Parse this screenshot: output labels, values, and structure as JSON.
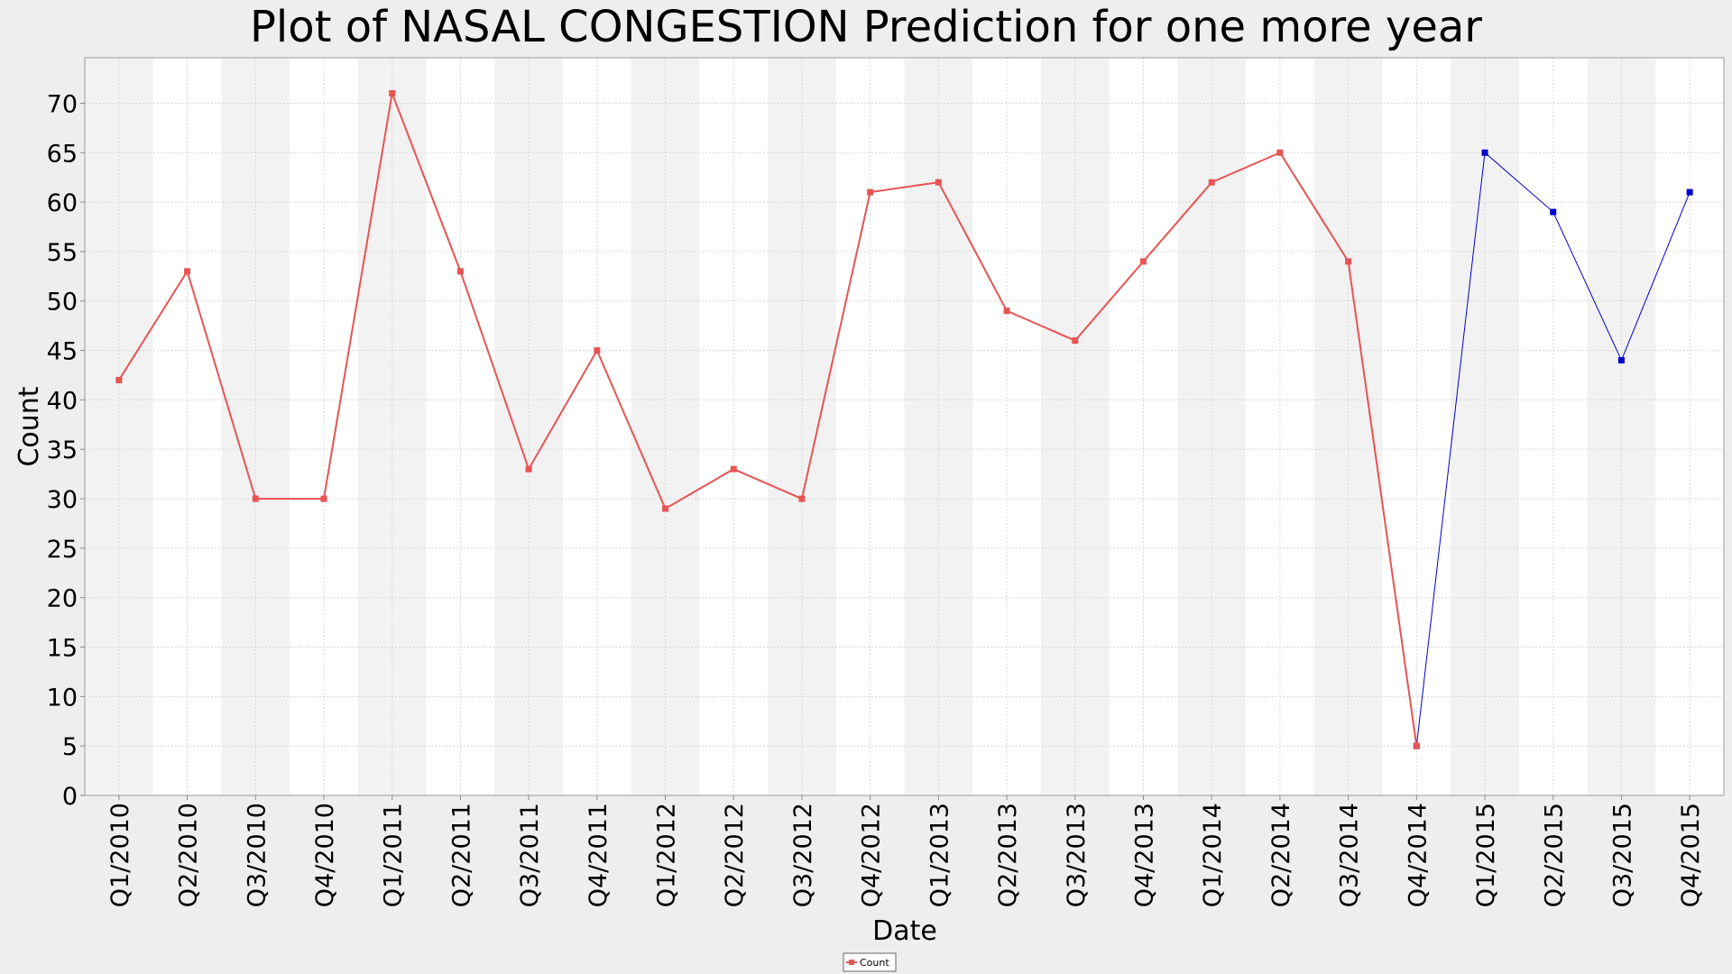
{
  "chart_data": {
    "type": "line",
    "title": "Plot of NASAL CONGESTION Prediction for one more year",
    "x_label": "Date",
    "y_label": "Count",
    "categories": [
      "Q1/2010",
      "Q2/2010",
      "Q3/2010",
      "Q4/2010",
      "Q1/2011",
      "Q2/2011",
      "Q3/2011",
      "Q4/2011",
      "Q1/2012",
      "Q2/2012",
      "Q3/2012",
      "Q4/2012",
      "Q1/2013",
      "Q2/2013",
      "Q3/2013",
      "Q4/2013",
      "Q1/2014",
      "Q2/2014",
      "Q3/2014",
      "Q4/2014",
      "Q1/2015",
      "Q2/2015",
      "Q3/2015",
      "Q4/2015"
    ],
    "series": [
      {
        "name": "Count",
        "color": "#e85454",
        "values": [
          42,
          53,
          30,
          30,
          71,
          53,
          33,
          45,
          29,
          33,
          30,
          61,
          62,
          49,
          46,
          54,
          62,
          65,
          54,
          5,
          null,
          null,
          null,
          null
        ]
      },
      {
        "color": "#0000cc",
        "values": [
          null,
          null,
          null,
          null,
          null,
          null,
          null,
          null,
          null,
          null,
          null,
          null,
          null,
          null,
          null,
          null,
          null,
          null,
          null,
          5,
          65,
          59,
          44,
          61
        ]
      }
    ],
    "ylim": [
      0,
      74.6
    ],
    "yticks": [
      0,
      5,
      10,
      15,
      20,
      25,
      30,
      35,
      40,
      45,
      50,
      55,
      60,
      65,
      70
    ],
    "grid": true,
    "legend": "bottom"
  }
}
